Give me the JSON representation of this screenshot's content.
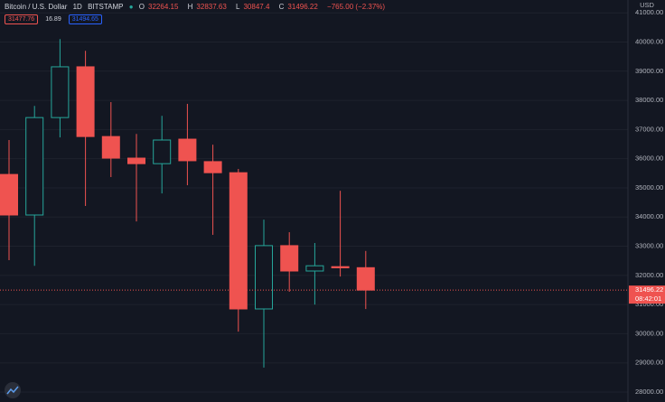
{
  "chart_data": {
    "type": "candlestick",
    "title": "Bitcoin / U.S. Dollar",
    "interval": "1D",
    "exchange": "BITSTAMP",
    "ohlc_labels": [
      "O",
      "H",
      "L",
      "C"
    ],
    "change": "−765.00 (−2.37%)",
    "quote": {
      "bid": 31477.76,
      "spread": 16.89,
      "ask": 31494.65
    },
    "y_unit": "USD",
    "countdown": "08:42:01",
    "categories": [
      null,
      null,
      null,
      null,
      null,
      null,
      null,
      null,
      null,
      null,
      null,
      null,
      null,
      null,
      null
    ],
    "open": [
      35460,
      34070,
      37410,
      39150,
      36760,
      36020,
      35830,
      36670,
      35900,
      35520,
      30850,
      33020,
      32150,
      32300,
      32264.15
    ],
    "high": [
      36640,
      37810,
      40100,
      39700,
      37940,
      36850,
      37470,
      37880,
      36480,
      35650,
      33910,
      33480,
      33110,
      34900,
      32837.63
    ],
    "low": [
      32520,
      32330,
      36730,
      34380,
      35370,
      33850,
      34810,
      35090,
      33390,
      30070,
      28840,
      31440,
      31000,
      31960,
      30847.4
    ],
    "close": [
      34070,
      37410,
      39150,
      36760,
      36020,
      35830,
      36640,
      35930,
      35520,
      30850,
      33020,
      32150,
      32330,
      32260,
      31496.22
    ],
    "up_color": "#26a69a",
    "down_color": "#ef5350",
    "hollow_up": true,
    "ylim": [
      27660,
      41440
    ],
    "yticks": [
      {
        "value": 28000,
        "label": "28000.00"
      },
      {
        "value": 29000,
        "label": "29000.00"
      },
      {
        "value": 30000,
        "label": "30000.00"
      },
      {
        "value": 31000,
        "label": "31000.00"
      },
      {
        "value": 32000,
        "label": "32000.00"
      },
      {
        "value": 33000,
        "label": "33000.00"
      },
      {
        "value": 34000,
        "label": "34000.00"
      },
      {
        "value": 35000,
        "label": "35000.00"
      },
      {
        "value": 36000,
        "label": "36000.00"
      },
      {
        "value": 37000,
        "label": "37000.00"
      },
      {
        "value": 38000,
        "label": "38000.00"
      },
      {
        "value": 39000,
        "label": "39000.00"
      },
      {
        "value": 40000,
        "label": "40000.00"
      },
      {
        "value": 41000,
        "label": "41000.00"
      }
    ],
    "grid": true
  }
}
